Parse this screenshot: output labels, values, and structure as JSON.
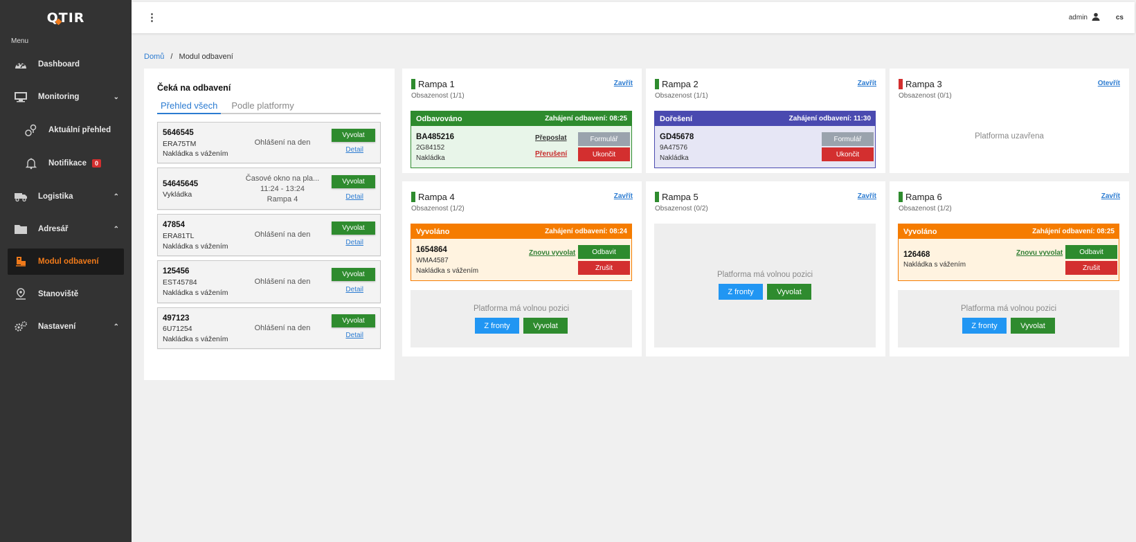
{
  "app": {
    "logo": "QTIR",
    "menu_label": "Menu"
  },
  "nav": {
    "dashboard": "Dashboard",
    "monitoring": "Monitoring",
    "aktualni": "Aktuální přehled",
    "notifikace": "Notifikace",
    "notifikace_count": "0",
    "logistika": "Logistika",
    "adresar": "Adresář",
    "modul": "Modul odbavení",
    "stanoviste": "Stanoviště",
    "nastaveni": "Nastavení"
  },
  "topbar": {
    "user": "admin",
    "lang": "cs"
  },
  "breadcrumb": {
    "home": "Domů",
    "sep": "/",
    "current": "Modul odbavení"
  },
  "queue": {
    "title": "Čeká na odbavení",
    "tabs": [
      "Přehled všech",
      "Podle platformy"
    ],
    "call_label": "Vyvolat",
    "detail_label": "Detail",
    "items": [
      {
        "id": "5646545",
        "plate": "ERA75TM",
        "type": "Nakládka s vážením",
        "status": "Ohlášení na den"
      },
      {
        "id": "54645645",
        "type": "Vykládka",
        "status": "Časové okno na pla...",
        "status2": "11:24 - 13:24",
        "status3": "Rampa 4"
      },
      {
        "id": "47854",
        "plate": "ERA81TL",
        "type": "Nakládka s vážením",
        "status": "Ohlášení na den"
      },
      {
        "id": "125456",
        "plate": "EST45784",
        "type": "Nakládka s vážením",
        "status": "Ohlášení na den"
      },
      {
        "id": "497123",
        "plate": "6U71254",
        "type": "Nakládka s vážením",
        "status": "Ohlášení na den"
      }
    ]
  },
  "labels": {
    "close": "Zavřít",
    "open": "Otevřít",
    "closed_platform": "Platforma uzavřena",
    "free_position": "Platforma má volnou pozici",
    "from_queue": "Z fronty",
    "call": "Vyvolat",
    "forward": "Přeposlat",
    "interrupt": "Přerušení",
    "form": "Formulář",
    "finish": "Ukončit",
    "recall": "Znovu vyvolat",
    "dispatch": "Odbavit",
    "cancel": "Zrušit"
  },
  "ramps": [
    {
      "name": "Rampa 1",
      "occupancy": "Obsazenost (1/1)",
      "bar_color": "#2e8b2e",
      "slot": {
        "state": "Odbavováno",
        "time": "Zahájení odbavení: 08:25",
        "id": "BA485216",
        "plate": "2G84152",
        "type": "Nakládka"
      }
    },
    {
      "name": "Rampa 2",
      "occupancy": "Obsazenost (1/1)",
      "bar_color": "#2e8b2e",
      "slot": {
        "state": "Dořešení",
        "time": "Zahájení odbavení: 11:30",
        "id": "GD45678",
        "plate": "9A47576",
        "type": "Nakládka"
      }
    },
    {
      "name": "Rampa 3",
      "occupancy": "Obsazenost (0/1)",
      "bar_color": "#d32f2f"
    },
    {
      "name": "Rampa 4",
      "occupancy": "Obsazenost (1/2)",
      "bar_color": "#2e8b2e",
      "slot": {
        "state": "Vyvoláno",
        "time": "Zahájení odbavení: 08:24",
        "id": "1654864",
        "plate": "WMA4587",
        "type": "Nakládka s vážením"
      }
    },
    {
      "name": "Rampa 5",
      "occupancy": "Obsazenost (0/2)",
      "bar_color": "#2e8b2e"
    },
    {
      "name": "Rampa 6",
      "occupancy": "Obsazenost (1/2)",
      "bar_color": "#2e8b2e",
      "slot": {
        "state": "Vyvoláno",
        "time": "Zahájení odbavení: 08:25",
        "id": "126468",
        "type": "Nakládka s vážením"
      }
    }
  ],
  "colors": {
    "green": "#2e8b2e",
    "red": "#d32f2f",
    "blue": "#2196f3",
    "orange": "#f57c00",
    "purple": "#4a4ab0",
    "accent": "#f07a1a"
  }
}
